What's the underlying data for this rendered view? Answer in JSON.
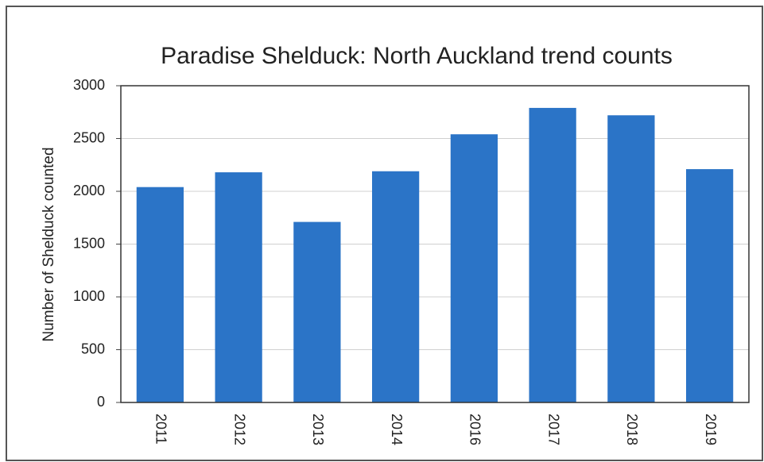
{
  "chart_data": {
    "type": "bar",
    "title": "Paradise Shelduck:  North Auckland trend counts",
    "y_label": "Number of Shelduck counted",
    "categories": [
      "2011",
      "2012",
      "2013",
      "2014",
      "2016",
      "2017",
      "2018",
      "2019"
    ],
    "values": [
      2040,
      2180,
      1710,
      2190,
      2540,
      2790,
      2720,
      2210
    ],
    "color": "#2b74c7",
    "ylim": [
      0,
      3000
    ],
    "yticks": [
      0,
      500,
      1000,
      1500,
      2000,
      2500,
      3000
    ],
    "grid": true
  }
}
